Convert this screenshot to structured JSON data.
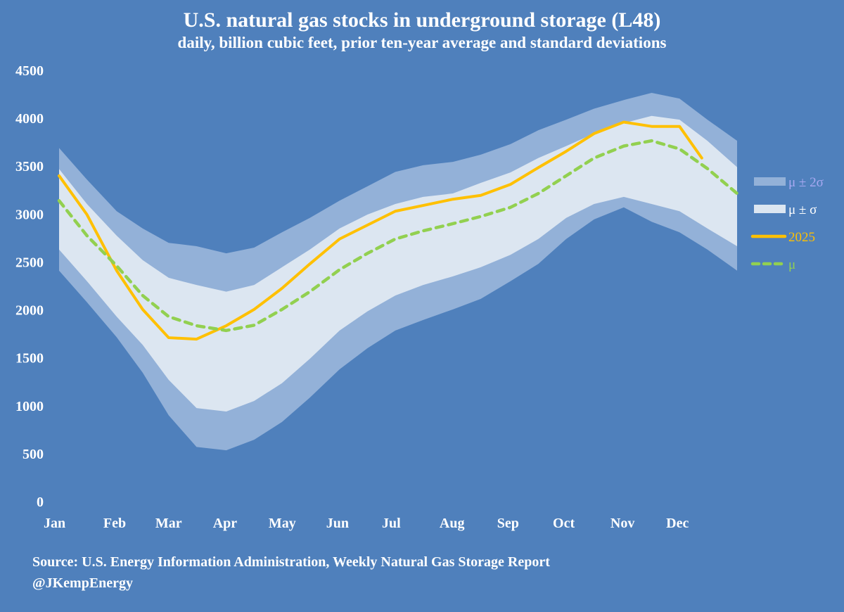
{
  "chart_data": {
    "type": "area",
    "title": "U.S. natural gas stocks in underground storage (L48)",
    "subtitle": "daily, billion cubic feet, prior ten-year average and standard deviations",
    "xlabel": "",
    "ylabel": "",
    "ylim": [
      0,
      4500
    ],
    "yticks": [
      "0",
      "500",
      "1000",
      "1500",
      "2000",
      "2500",
      "3000",
      "3500",
      "4000",
      "4500"
    ],
    "xticks": [
      "Jan",
      "Feb",
      "Mar",
      "Apr",
      "May",
      "Jun",
      "Jul",
      "Aug",
      "Sep",
      "Oct",
      "Nov",
      "Dec"
    ],
    "xlim_days": [
      0,
      365
    ],
    "grid": false,
    "legend_position": "right",
    "x_days": [
      0,
      15,
      31,
      45,
      59,
      74,
      90,
      105,
      120,
      135,
      151,
      166,
      181,
      196,
      212,
      227,
      243,
      258,
      273,
      288,
      304,
      319,
      334,
      349,
      365
    ],
    "series": [
      {
        "name": "μ ± 2σ",
        "kind": "band",
        "color": "#93b1d8",
        "upper": [
          3690,
          3360,
          3030,
          2850,
          2700,
          2665,
          2590,
          2650,
          2810,
          2960,
          3140,
          3290,
          3440,
          3510,
          3545,
          3620,
          3730,
          3875,
          3985,
          4100,
          4190,
          4265,
          4205,
          3985,
          3765
        ],
        "lower": [
          2410,
          2080,
          1715,
          1345,
          900,
          570,
          535,
          645,
          830,
          1085,
          1380,
          1600,
          1785,
          1895,
          2005,
          2115,
          2300,
          2480,
          2740,
          2945,
          3070,
          2920,
          2810,
          2630,
          2410
        ]
      },
      {
        "name": "μ ± σ",
        "kind": "band",
        "color": "#dce6f1",
        "upper": [
          3470,
          3105,
          2775,
          2520,
          2335,
          2260,
          2190,
          2260,
          2445,
          2630,
          2850,
          2995,
          3105,
          3180,
          3215,
          3325,
          3435,
          3585,
          3710,
          3840,
          3950,
          4025,
          3985,
          3765,
          3490
        ],
        "lower": [
          2630,
          2300,
          1930,
          1635,
          1270,
          975,
          940,
          1050,
          1235,
          1490,
          1785,
          1985,
          2150,
          2260,
          2350,
          2445,
          2575,
          2740,
          2960,
          3105,
          3180,
          3105,
          3030,
          2850,
          2665
        ]
      },
      {
        "name": "2025",
        "kind": "line",
        "color": "#ffc000",
        "x_days": [
          0,
          15,
          31,
          45,
          59,
          74,
          90,
          105,
          120,
          135,
          151,
          166,
          181,
          196,
          212,
          227,
          243,
          258,
          273,
          288,
          304,
          319,
          334,
          346
        ],
        "values": [
          3400,
          2995,
          2410,
          2005,
          1710,
          1695,
          1835,
          2005,
          2225,
          2480,
          2740,
          2885,
          3030,
          3090,
          3155,
          3195,
          3310,
          3485,
          3655,
          3840,
          3960,
          3915,
          3915,
          3585
        ]
      },
      {
        "name": "μ",
        "kind": "dashed",
        "color": "#92d050",
        "values": [
          3140,
          2775,
          2460,
          2150,
          1930,
          1835,
          1785,
          1840,
          2005,
          2190,
          2420,
          2590,
          2740,
          2825,
          2900,
          2975,
          3070,
          3215,
          3400,
          3585,
          3710,
          3765,
          3680,
          3475,
          3215
        ]
      }
    ],
    "legend_label_colors": [
      "#a9a9f2",
      "#ffffff",
      "#ffc000",
      "#92d050"
    ]
  },
  "source": "Source: U.S. Energy Information Administration, Weekly Natural Gas Storage Report",
  "credit": "@JKempEnergy"
}
